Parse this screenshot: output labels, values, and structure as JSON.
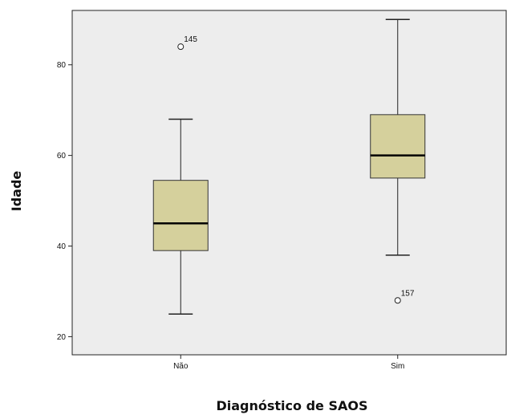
{
  "chart_data": {
    "type": "boxplot",
    "xlabel": "Diagnóstico de SAOS",
    "ylabel": "Idade",
    "ylim": [
      16,
      92
    ],
    "yticks": [
      20,
      40,
      60,
      80
    ],
    "grid": false,
    "plot_background": "#ededed",
    "box_fill": "#d5d09c",
    "categories": [
      "Não",
      "Sim"
    ],
    "boxes": [
      {
        "category": "Não",
        "whisker_low": 25,
        "q1": 39,
        "median": 45,
        "q3": 54.5,
        "whisker_high": 68,
        "outliers": [
          {
            "value": 84,
            "label": "145"
          }
        ]
      },
      {
        "category": "Sim",
        "whisker_low": 38,
        "q1": 55,
        "median": 60,
        "q3": 69,
        "whisker_high": 90,
        "outliers": [
          {
            "value": 28,
            "label": "157"
          }
        ]
      }
    ]
  }
}
